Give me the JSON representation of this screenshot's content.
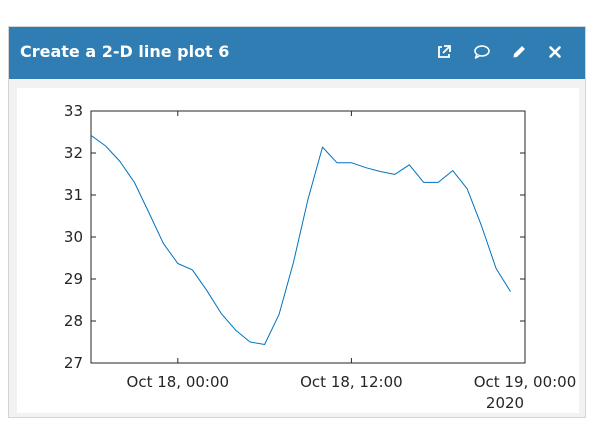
{
  "window": {
    "title": "Create a 2-D line plot 6",
    "accent_color": "#2f7db3",
    "icons": [
      "open-external-icon",
      "comment-icon",
      "edit-pencil-icon",
      "close-icon"
    ]
  },
  "chart_data": {
    "type": "line",
    "title": "",
    "xlabel": "",
    "ylabel": "",
    "x_ticks": [
      "Oct 18, 00:00",
      "Oct 18, 12:00",
      "Oct 19, 00:00"
    ],
    "x_secondary_label": "2020",
    "y_ticks": [
      "27",
      "28",
      "29",
      "30",
      "31",
      "32",
      "33"
    ],
    "ylim": [
      27,
      33
    ],
    "xlim": [
      "2020-10-17 18:00",
      "2020-10-19 00:00"
    ],
    "grid": false,
    "line_color": "#0072bd",
    "series": [
      {
        "x": [
          "2020-10-17 18:00",
          "2020-10-17 19:00",
          "2020-10-17 20:00",
          "2020-10-17 21:00",
          "2020-10-17 22:00",
          "2020-10-17 23:00",
          "2020-10-18 00:00",
          "2020-10-18 01:00",
          "2020-10-18 02:00",
          "2020-10-18 03:00",
          "2020-10-18 04:00",
          "2020-10-18 05:00",
          "2020-10-18 06:00",
          "2020-10-18 07:00",
          "2020-10-18 08:00",
          "2020-10-18 09:00",
          "2020-10-18 10:00",
          "2020-10-18 11:00",
          "2020-10-18 12:00",
          "2020-10-18 13:00",
          "2020-10-18 14:00",
          "2020-10-18 15:00",
          "2020-10-18 16:00",
          "2020-10-18 17:00",
          "2020-10-18 18:00",
          "2020-10-18 19:00",
          "2020-10-18 20:00",
          "2020-10-18 21:00",
          "2020-10-18 22:00",
          "2020-10-18 23:00"
        ],
        "values": [
          32.42,
          32.17,
          31.8,
          31.3,
          30.58,
          29.85,
          29.37,
          29.22,
          28.73,
          28.18,
          27.78,
          27.5,
          27.44,
          28.16,
          29.4,
          30.9,
          32.14,
          31.77,
          31.77,
          31.65,
          31.56,
          31.49,
          31.72,
          31.3,
          31.3,
          31.58,
          31.15,
          30.26,
          29.25,
          28.7
        ]
      }
    ]
  }
}
